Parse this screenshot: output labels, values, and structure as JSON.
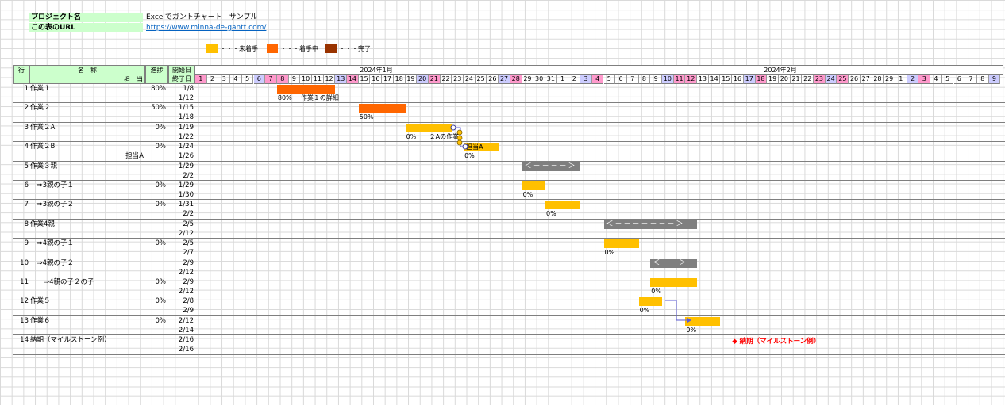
{
  "info": {
    "project_label": "プロジェクト名",
    "project_value": "Excelでガントチャート　サンプル",
    "url_label": "この表のURL",
    "url_value": "https://www.minna-de-gantt.com/"
  },
  "legend": [
    {
      "color": "#ffc000",
      "text": "・・・未着手"
    },
    {
      "color": "#ff6600",
      "text": "・・・着手中"
    },
    {
      "color": "#993300",
      "text": "・・・完了"
    }
  ],
  "headers": {
    "row": "行",
    "name": "名　称",
    "owner": "担　当",
    "progress": "進捗",
    "start": "開始日",
    "end": "終了日"
  },
  "months": [
    "2024年1月",
    "2024年2月"
  ],
  "days": [
    {
      "d": "1",
      "t": "sun"
    },
    {
      "d": "2",
      "t": ""
    },
    {
      "d": "3",
      "t": ""
    },
    {
      "d": "4",
      "t": ""
    },
    {
      "d": "5",
      "t": ""
    },
    {
      "d": "6",
      "t": "sat"
    },
    {
      "d": "7",
      "t": "sun"
    },
    {
      "d": "8",
      "t": "sun"
    },
    {
      "d": "9",
      "t": ""
    },
    {
      "d": "10",
      "t": ""
    },
    {
      "d": "11",
      "t": ""
    },
    {
      "d": "12",
      "t": ""
    },
    {
      "d": "13",
      "t": "sat"
    },
    {
      "d": "14",
      "t": "sun"
    },
    {
      "d": "15",
      "t": ""
    },
    {
      "d": "16",
      "t": ""
    },
    {
      "d": "17",
      "t": ""
    },
    {
      "d": "18",
      "t": ""
    },
    {
      "d": "19",
      "t": ""
    },
    {
      "d": "20",
      "t": "sat"
    },
    {
      "d": "21",
      "t": "sun"
    },
    {
      "d": "22",
      "t": ""
    },
    {
      "d": "23",
      "t": ""
    },
    {
      "d": "24",
      "t": ""
    },
    {
      "d": "25",
      "t": ""
    },
    {
      "d": "26",
      "t": ""
    },
    {
      "d": "27",
      "t": "sat"
    },
    {
      "d": "28",
      "t": "sun"
    },
    {
      "d": "29",
      "t": ""
    },
    {
      "d": "30",
      "t": ""
    },
    {
      "d": "31",
      "t": ""
    },
    {
      "d": "1",
      "t": ""
    },
    {
      "d": "2",
      "t": ""
    },
    {
      "d": "3",
      "t": "sat"
    },
    {
      "d": "4",
      "t": "sun"
    },
    {
      "d": "5",
      "t": ""
    },
    {
      "d": "6",
      "t": ""
    },
    {
      "d": "7",
      "t": ""
    },
    {
      "d": "8",
      "t": ""
    },
    {
      "d": "9",
      "t": ""
    },
    {
      "d": "10",
      "t": "sat"
    },
    {
      "d": "11",
      "t": "sun"
    },
    {
      "d": "12",
      "t": "sun"
    },
    {
      "d": "13",
      "t": ""
    },
    {
      "d": "14",
      "t": ""
    },
    {
      "d": "15",
      "t": ""
    },
    {
      "d": "16",
      "t": ""
    },
    {
      "d": "17",
      "t": "sat"
    },
    {
      "d": "18",
      "t": "sun"
    },
    {
      "d": "19",
      "t": ""
    },
    {
      "d": "20",
      "t": ""
    },
    {
      "d": "21",
      "t": ""
    },
    {
      "d": "22",
      "t": ""
    },
    {
      "d": "23",
      "t": "sun"
    },
    {
      "d": "24",
      "t": "sat"
    },
    {
      "d": "25",
      "t": "sun"
    },
    {
      "d": "26",
      "t": ""
    },
    {
      "d": "27",
      "t": ""
    },
    {
      "d": "28",
      "t": ""
    },
    {
      "d": "29",
      "t": ""
    },
    {
      "d": "1",
      "t": ""
    },
    {
      "d": "2",
      "t": "sat"
    },
    {
      "d": "3",
      "t": "sun"
    },
    {
      "d": "4",
      "t": ""
    },
    {
      "d": "5",
      "t": ""
    },
    {
      "d": "6",
      "t": ""
    },
    {
      "d": "7",
      "t": ""
    },
    {
      "d": "8",
      "t": ""
    },
    {
      "d": "9",
      "t": "sat"
    }
  ],
  "tasks": [
    {
      "no": "1",
      "name": "作業１",
      "owner": "",
      "progress": "80%",
      "start": "1/8",
      "end": "1/12"
    },
    {
      "no": "2",
      "name": "作業２",
      "owner": "",
      "progress": "50%",
      "start": "1/15",
      "end": "1/18"
    },
    {
      "no": "3",
      "name": "作業２A",
      "owner": "",
      "progress": "0%",
      "start": "1/19",
      "end": "1/22"
    },
    {
      "no": "4",
      "name": "作業２B",
      "owner": "担当A",
      "progress": "0%",
      "start": "1/24",
      "end": "1/26"
    },
    {
      "no": "5",
      "name": "作業３親",
      "owner": "",
      "progress": "",
      "start": "1/29",
      "end": "2/2"
    },
    {
      "no": "6",
      "name": "　⇒3親の子１",
      "owner": "",
      "progress": "0%",
      "start": "1/29",
      "end": "1/30"
    },
    {
      "no": "7",
      "name": "　⇒3親の子２",
      "owner": "",
      "progress": "0%",
      "start": "1/31",
      "end": "2/2"
    },
    {
      "no": "8",
      "name": "作業4親",
      "owner": "",
      "progress": "",
      "start": "2/5",
      "end": "2/12"
    },
    {
      "no": "9",
      "name": "　⇒4親の子１",
      "owner": "",
      "progress": "0%",
      "start": "2/5",
      "end": "2/7"
    },
    {
      "no": "10",
      "name": "　⇒4親の子２",
      "owner": "",
      "progress": "",
      "start": "2/9",
      "end": "2/12"
    },
    {
      "no": "11",
      "name": "　　⇒4親の子２の子",
      "owner": "",
      "progress": "0%",
      "start": "2/9",
      "end": "2/12"
    },
    {
      "no": "12",
      "name": "作業５",
      "owner": "",
      "progress": "0%",
      "start": "2/8",
      "end": "2/9"
    },
    {
      "no": "13",
      "name": "作業６",
      "owner": "",
      "progress": "0%",
      "start": "2/12",
      "end": "2/14"
    },
    {
      "no": "14",
      "name": "納期（マイルストーン例）",
      "owner": "",
      "progress": "",
      "start": "2/16",
      "end": "2/16"
    }
  ],
  "bars": [
    {
      "row": 0,
      "from": 7,
      "span": 5,
      "kind": "wip",
      "pct": "80%",
      "note": "作業１の詳細"
    },
    {
      "row": 1,
      "from": 14,
      "span": 4,
      "kind": "wip",
      "pct": "50%",
      "note": ""
    },
    {
      "row": 2,
      "from": 18,
      "span": 4,
      "kind": "todo",
      "pct": "0%",
      "note": "２Aの作業"
    },
    {
      "row": 3,
      "from": 23,
      "span": 3,
      "kind": "todo",
      "pct": "0%",
      "note": "担当A"
    },
    {
      "row": 4,
      "from": 28,
      "span": 5,
      "kind": "sum",
      "label": "＜－－－－＞"
    },
    {
      "row": 5,
      "from": 28,
      "span": 2,
      "kind": "todo",
      "pct": "0%",
      "note": ""
    },
    {
      "row": 6,
      "from": 30,
      "span": 3,
      "kind": "todo",
      "pct": "0%",
      "note": ""
    },
    {
      "row": 7,
      "from": 35,
      "span": 8,
      "kind": "sum",
      "label": "＜－－－－－－－＞"
    },
    {
      "row": 8,
      "from": 35,
      "span": 3,
      "kind": "todo",
      "pct": "0%",
      "note": ""
    },
    {
      "row": 9,
      "from": 39,
      "span": 4,
      "kind": "sum",
      "label": "＜－－＞"
    },
    {
      "row": 10,
      "from": 39,
      "span": 4,
      "kind": "todo",
      "pct": "0%",
      "note": ""
    },
    {
      "row": 11,
      "from": 38,
      "span": 2,
      "kind": "todo",
      "pct": "0%",
      "note": ""
    },
    {
      "row": 12,
      "from": 42,
      "span": 3,
      "kind": "todo",
      "pct": "0%",
      "note": ""
    }
  ],
  "milestone": {
    "row": 13,
    "from": 46,
    "text": "◆ 納期（マイルストーン例）"
  }
}
